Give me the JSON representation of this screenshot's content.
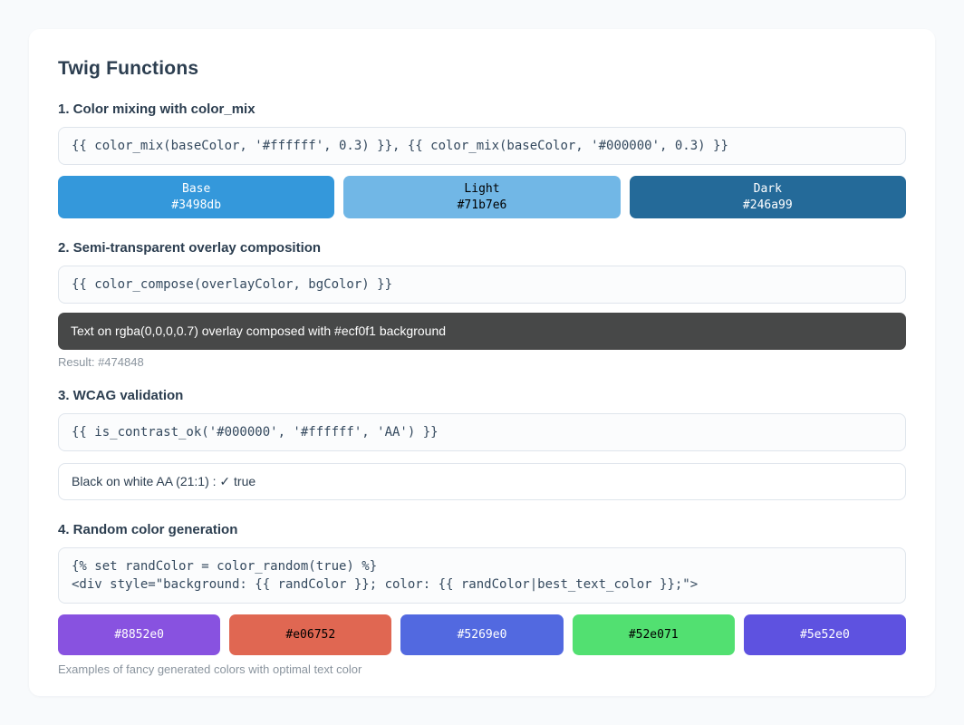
{
  "page": {
    "title": "Twig Functions"
  },
  "colors": {
    "page_bg": "#f8fafc",
    "card_bg": "#ffffff",
    "heading_text": "#2c3e50",
    "code_text": "#34495e",
    "caption_text": "#8a949e",
    "border": "#dfe5ec"
  },
  "sections": {
    "color_mix": {
      "heading": "1. Color mixing with color_mix",
      "code": "{{ color_mix(baseColor, '#ffffff', 0.3) }}, {{ color_mix(baseColor, '#000000', 0.3) }}",
      "swatches": [
        {
          "label": "Base",
          "hex": "#3498db",
          "bg": "#3498db",
          "text_color": "#ffffff"
        },
        {
          "label": "Light",
          "hex": "#71b7e6",
          "bg": "#71b7e6",
          "text_color": "#000000"
        },
        {
          "label": "Dark",
          "hex": "#246a99",
          "bg": "#246a99",
          "text_color": "#ffffff"
        }
      ]
    },
    "overlay": {
      "heading": "2. Semi-transparent overlay composition",
      "code": "{{ color_compose(overlayColor, bgColor) }}",
      "bar_text": "Text on rgba(0,0,0,0.7) overlay composed with #ecf0f1 background",
      "bar_bg": "#474848",
      "bar_text_color": "#ffffff",
      "result_caption": "Result: #474848"
    },
    "wcag": {
      "heading": "3. WCAG validation",
      "code": "{{ is_contrast_ok('#000000', '#ffffff', 'AA') }}",
      "result_text": "Black on white AA (21:1) : ✓ true"
    },
    "random": {
      "heading": "4. Random color generation",
      "code_line1": "{% set randColor = color_random(true) %}",
      "code_line2": "<div style=\"background: {{ randColor }}; color: {{ randColor|best_text_color }};\">",
      "swatches": [
        {
          "hex": "#8852e0",
          "bg": "#8852e0",
          "text_color": "#ffffff"
        },
        {
          "hex": "#e06752",
          "bg": "#e06752",
          "text_color": "#000000"
        },
        {
          "hex": "#5269e0",
          "bg": "#5269e0",
          "text_color": "#ffffff"
        },
        {
          "hex": "#52e071",
          "bg": "#52e071",
          "text_color": "#000000"
        },
        {
          "hex": "#5e52e0",
          "bg": "#5e52e0",
          "text_color": "#ffffff"
        }
      ],
      "caption": "Examples of fancy generated colors with optimal text color"
    }
  }
}
